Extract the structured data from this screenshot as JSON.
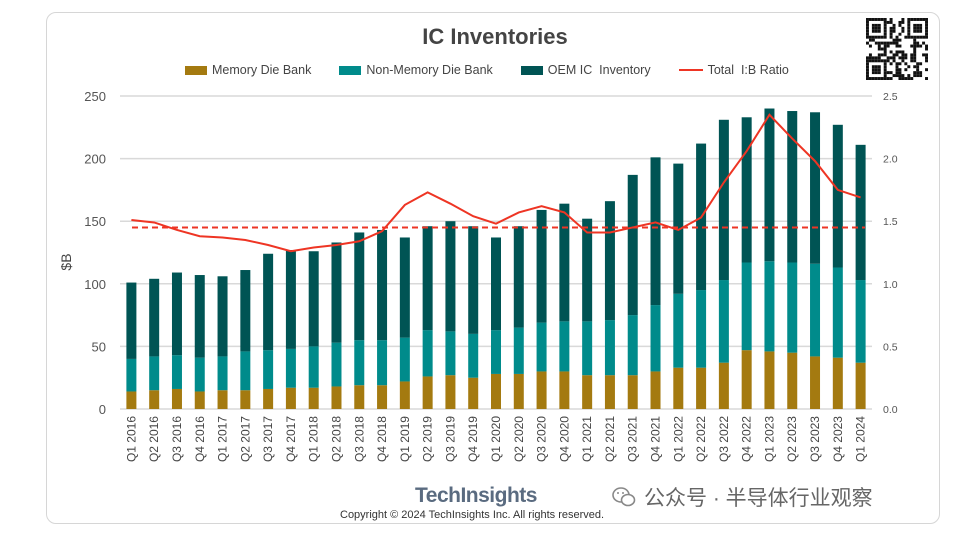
{
  "chart_data": {
    "type": "bar",
    "subtype": "stacked-bar-with-line",
    "title": "IC Inventories",
    "ylabel": "$B",
    "ylim": [
      0,
      250
    ],
    "yticks": [
      0,
      50,
      100,
      150,
      200,
      250
    ],
    "y2lim": [
      0,
      2.5
    ],
    "y2ticks": [
      "0.0",
      "0.5",
      "1.0",
      "1.5",
      "2.0",
      "2.5"
    ],
    "grid": true,
    "legend_position": "top",
    "categories": [
      "Q1 2016",
      "Q2 2016",
      "Q3 2016",
      "Q4 2016",
      "Q1 2017",
      "Q2 2017",
      "Q3 2017",
      "Q4 2017",
      "Q1 2018",
      "Q2 2018",
      "Q3 2018",
      "Q4 2018",
      "Q1 2019",
      "Q2 2019",
      "Q3 2019",
      "Q4 2019",
      "Q1 2020",
      "Q2 2020",
      "Q3 2020",
      "Q4 2020",
      "Q1 2021",
      "Q2 2021",
      "Q3 2021",
      "Q4 2021",
      "Q1 2022",
      "Q2 2022",
      "Q3 2022",
      "Q4 2022",
      "Q1 2023",
      "Q2 2023",
      "Q3 2023",
      "Q4 2023",
      "Q1 2024"
    ],
    "series": [
      {
        "name": "Memory Die Bank",
        "type": "bar",
        "axis": "left",
        "color": "#a47a10",
        "values": [
          14,
          15,
          16,
          14,
          15,
          15,
          16,
          17,
          17,
          18,
          19,
          19,
          22,
          26,
          27,
          25,
          28,
          28,
          30,
          30,
          27,
          27,
          27,
          30,
          33,
          33,
          37,
          47,
          46,
          45,
          42,
          41,
          37
        ]
      },
      {
        "name": "Non-Memory Die Bank",
        "type": "bar",
        "axis": "left",
        "color": "#008b8b",
        "values": [
          26,
          27,
          27,
          27,
          27,
          31,
          31,
          31,
          33,
          35,
          36,
          36,
          35,
          37,
          35,
          35,
          35,
          37,
          39,
          40,
          43,
          44,
          48,
          53,
          59,
          62,
          66,
          70,
          72,
          72,
          74,
          72,
          66
        ]
      },
      {
        "name": "OEM IC  Inventory",
        "type": "bar",
        "axis": "left",
        "color": "#005454",
        "values": [
          61,
          62,
          66,
          66,
          64,
          65,
          77,
          79,
          76,
          80,
          86,
          88,
          80,
          83,
          88,
          86,
          74,
          81,
          90,
          94,
          82,
          95,
          112,
          118,
          104,
          117,
          128,
          116,
          122,
          121,
          121,
          114,
          108
        ]
      },
      {
        "name": "Total  I:B Ratio",
        "type": "line",
        "axis": "right",
        "color": "#ee3524",
        "values": [
          1.51,
          1.49,
          1.43,
          1.38,
          1.37,
          1.35,
          1.31,
          1.26,
          1.29,
          1.31,
          1.34,
          1.42,
          1.63,
          1.73,
          1.64,
          1.54,
          1.48,
          1.57,
          1.62,
          1.57,
          1.41,
          1.41,
          1.45,
          1.49,
          1.43,
          1.53,
          1.81,
          2.06,
          2.35,
          2.16,
          1.98,
          1.75,
          1.69
        ]
      }
    ],
    "reference_line": {
      "axis": "right",
      "value": 1.45,
      "style": "dashed",
      "color": "#ee3524"
    }
  },
  "footer": {
    "logo": "TechInsights",
    "copyright": "Copyright © 2024 TechInsights Inc.  All rights reserved.",
    "watermark": "公众号 · 半导体行业观察"
  }
}
